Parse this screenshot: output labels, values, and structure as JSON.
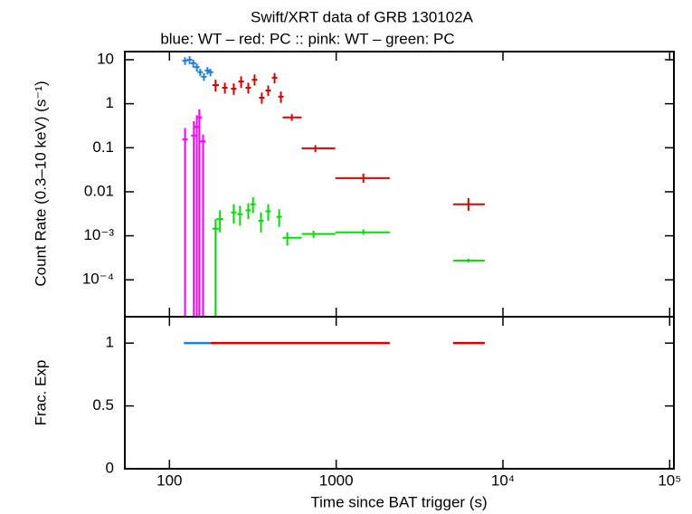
{
  "chart_data": [
    {
      "type": "scatter",
      "title": "Swift/XRT data of GRB 130102A",
      "subtitle": "blue: WT  – red: PC  :: pink: WT  – green: PC",
      "ylabel": "Count Rate (0.3–10 keV) (s⁻¹)",
      "xlog": true,
      "ylog": true,
      "xlim": [
        54,
        106000
      ],
      "ylim": [
        1.45e-05,
        15.3
      ],
      "yticks": [
        10,
        1,
        0.1,
        0.01,
        {
          "value": 0.001,
          "label": "10⁻³"
        },
        {
          "value": 0.0001,
          "label": "10⁻⁴"
        }
      ],
      "series": [
        {
          "color": "#1e7fe0",
          "x": [
            124,
            132,
            139,
            146,
            153,
            161,
            169,
            176
          ],
          "values": [
            9.5,
            10,
            8.3,
            6.8,
            5.2,
            4.1,
            5.7,
            5.2
          ],
          "y_low": [
            7.6,
            8,
            6.6,
            5.4,
            4.2,
            3.3,
            4.6,
            4.2
          ],
          "y_high": [
            11.4,
            12,
            10,
            8.2,
            6.2,
            4.9,
            6.8,
            6.2
          ]
        },
        {
          "color": "#e00000",
          "x": [
            189,
            215,
            243,
            269,
            297,
            324,
            358,
            391,
            427,
            466,
            542,
            750,
            1455,
            6210
          ],
          "x_low": [
            181,
            207,
            234,
            260,
            288,
            314,
            347,
            379,
            414,
            452,
            477,
            621,
            988,
            5020
          ],
          "x_high": [
            198,
            223,
            252,
            278,
            306,
            334,
            369,
            403,
            440,
            480,
            621,
            988,
            2094,
            7780
          ],
          "values": [
            2.66,
            2.31,
            2.2,
            3.2,
            2.3,
            3.5,
            1.37,
            2.0,
            3.9,
            1.44,
            0.49,
            0.097,
            0.0204,
            0.0052
          ],
          "y_low": [
            1.9,
            1.7,
            1.6,
            2.3,
            1.7,
            2.6,
            1.0,
            1.5,
            2.9,
            1.05,
            0.41,
            0.079,
            0.016,
            0.0037
          ],
          "y_high": [
            3.5,
            3.0,
            2.9,
            4.2,
            3.0,
            4.6,
            1.8,
            2.6,
            5.0,
            1.9,
            0.58,
            0.115,
            0.026,
            0.0072
          ]
        },
        {
          "color": "#ff00ff",
          "x": [
            124,
            140,
            146,
            151,
            159
          ],
          "values": [
            0.156,
            0.19,
            0.3,
            0.49,
            0.14
          ],
          "y_low": [
            1e-05,
            1e-05,
            1e-05,
            1e-05,
            1e-05
          ],
          "y_high": [
            0.28,
            0.4,
            0.55,
            0.75,
            0.2
          ]
        },
        {
          "color": "#00e000",
          "x": [
            189,
            201,
            243,
            265,
            297,
            317,
            354,
            391,
            455,
            509,
            731,
            1455,
            6210
          ],
          "x_low": [
            181,
            191,
            234,
            256,
            288,
            307,
            343,
            379,
            441,
            477,
            621,
            988,
            5020
          ],
          "x_high": [
            198,
            210,
            252,
            274,
            306,
            327,
            365,
            403,
            469,
            621,
            988,
            2094,
            7780
          ],
          "values": [
            0.00145,
            0.0024,
            0.0034,
            0.0031,
            0.0038,
            0.0052,
            0.0022,
            0.0036,
            0.0027,
            0.0009,
            0.0011,
            0.0012,
            0.000275
          ],
          "y_low": [
            1e-05,
            0.0012,
            0.0019,
            0.0017,
            0.0024,
            0.0033,
            0.0012,
            0.0022,
            0.0016,
            0.0006,
            0.0009,
            0.00105,
            0.00025
          ],
          "y_high": [
            0.0024,
            0.0038,
            0.0052,
            0.0048,
            0.0055,
            0.0075,
            0.0034,
            0.0052,
            0.004,
            0.0012,
            0.0013,
            0.0014,
            0.0003
          ]
        }
      ]
    },
    {
      "type": "scatter",
      "ylabel": "Frac. Exp",
      "xlabel": "Time since BAT trigger (s)",
      "xlog": true,
      "ylog": false,
      "xlim": [
        54,
        106000
      ],
      "ylim": [
        0,
        1.21
      ],
      "xticks": [
        100,
        1000,
        {
          "value": 10000,
          "label": "10⁴"
        },
        {
          "value": 100000,
          "label": "10⁵"
        }
      ],
      "yticks": [
        1,
        0.5,
        0
      ],
      "series": [
        {
          "color": "#1e7fe0",
          "x_low": [
            122
          ],
          "x_high": [
            176
          ],
          "values": [
            1
          ]
        },
        {
          "color": "#e00000",
          "x_low": [
            176,
            5020
          ],
          "x_high": [
            2094,
            7780
          ],
          "values": [
            1,
            1
          ]
        }
      ]
    }
  ]
}
